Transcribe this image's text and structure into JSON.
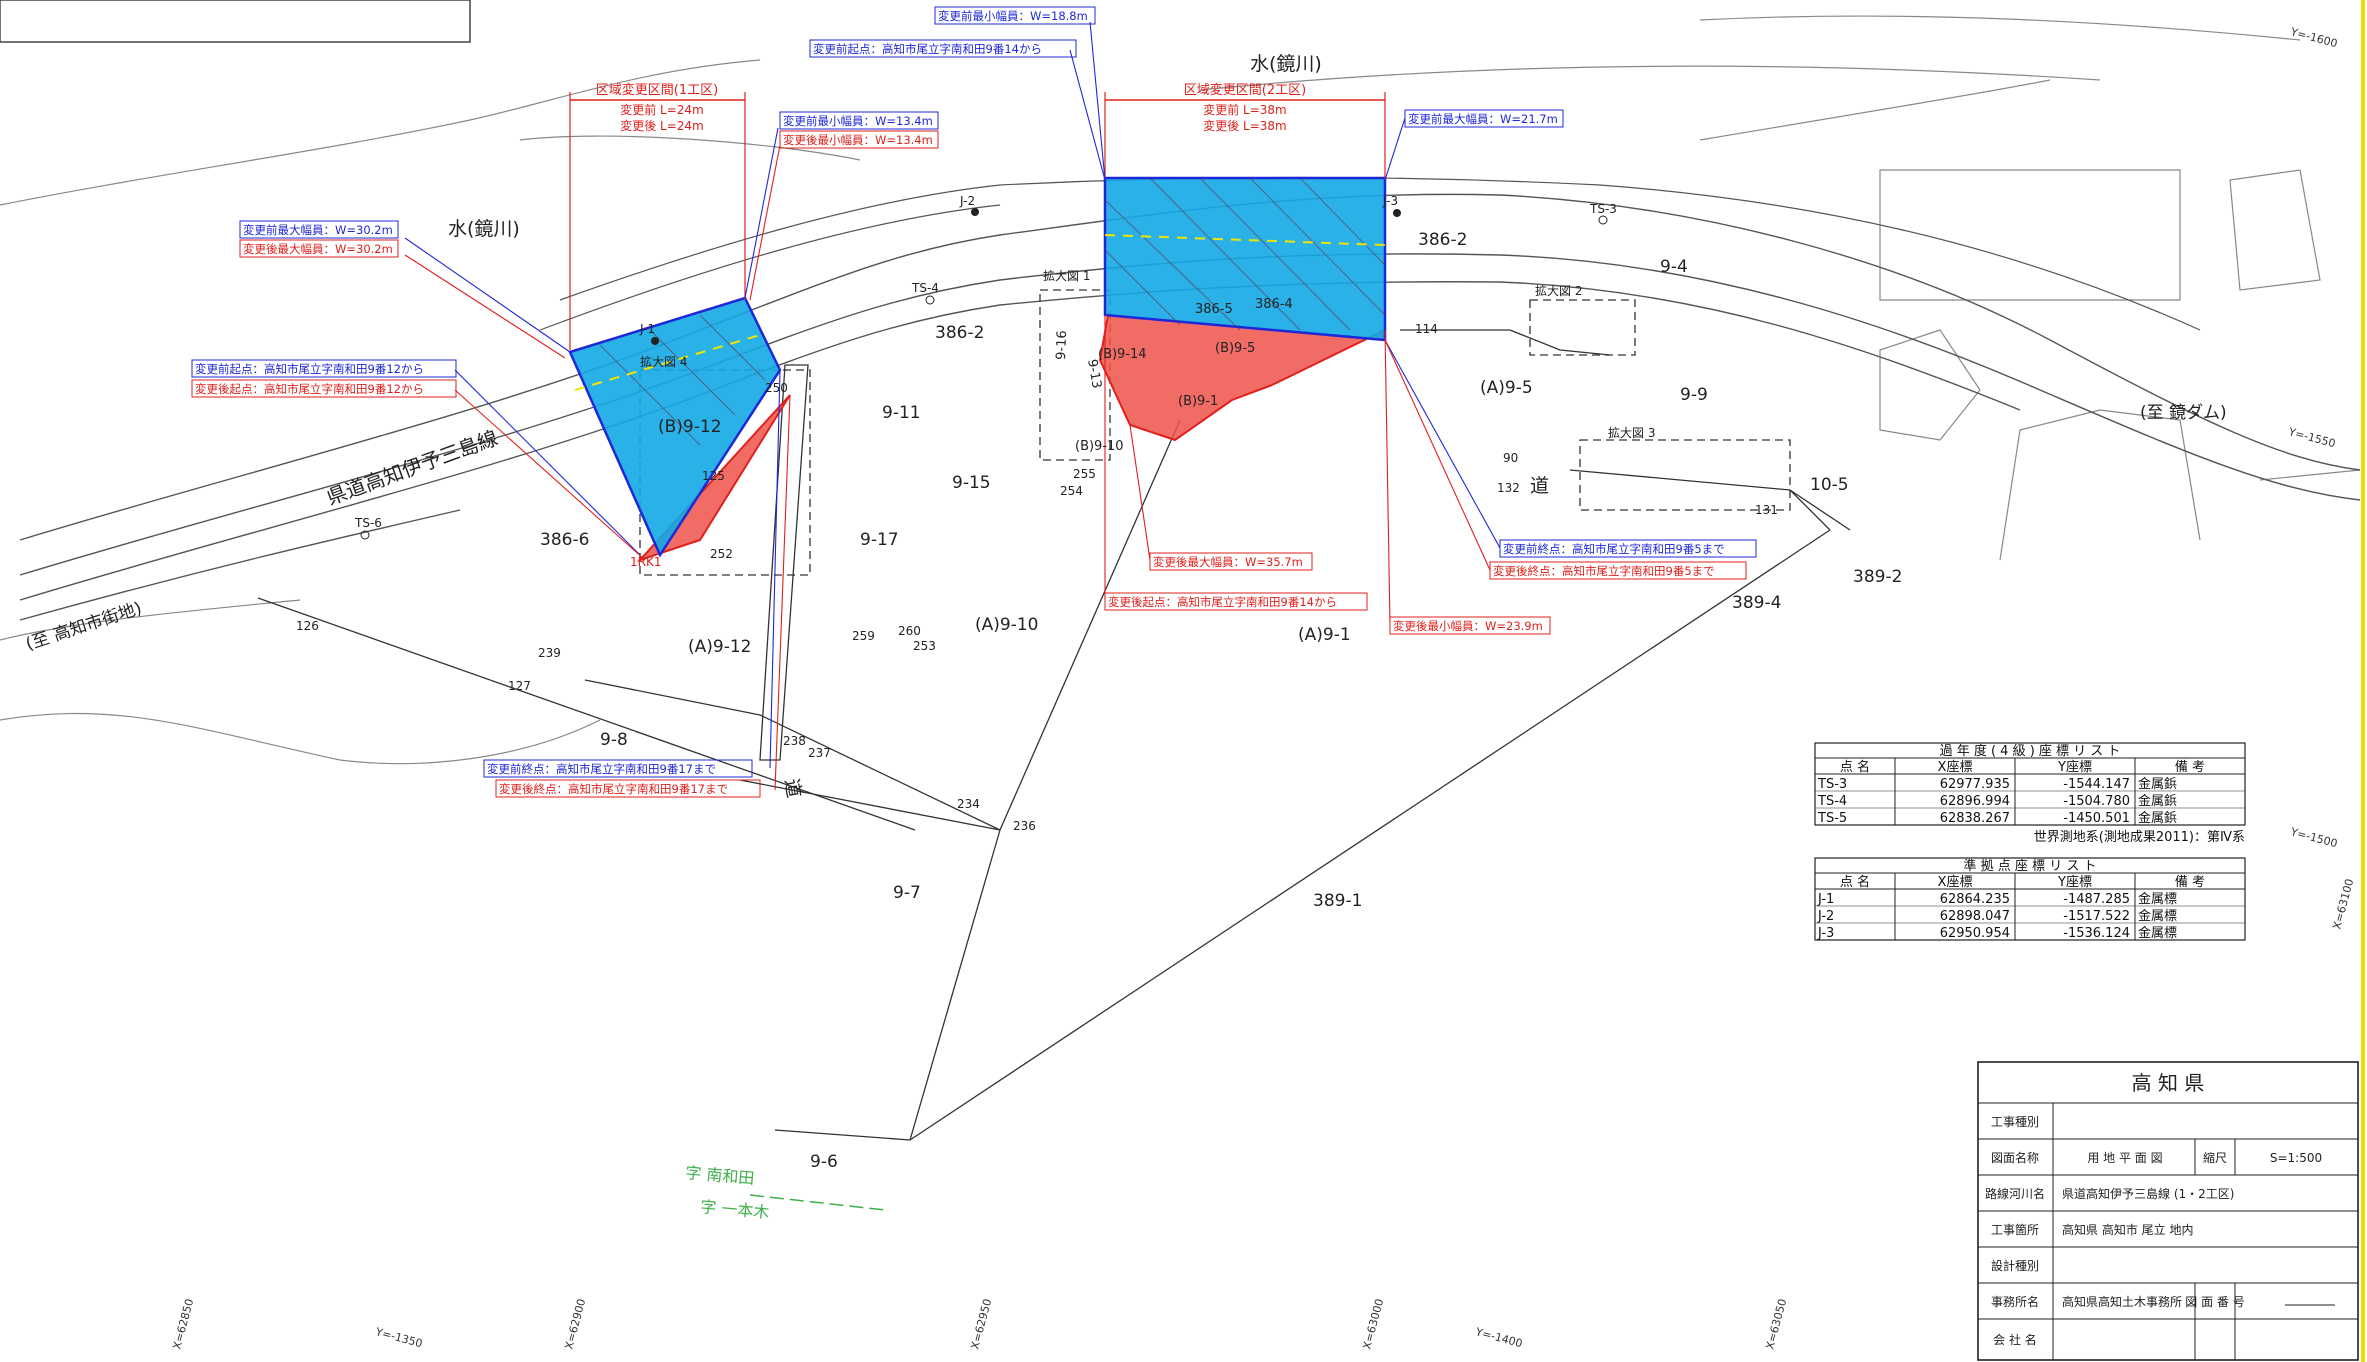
{
  "map": {
    "river_label_1": "水(鏡川)",
    "river_label_2": "水(鏡川)",
    "road_label": "県道高知伊予三島線",
    "direction_city": "(至 高知市街地)",
    "direction_dam": "(至 鏡ダム)",
    "road_char_1": "道",
    "road_char_2": "道",
    "aza_1": "字 南和田",
    "aza_2": "字 一本木"
  },
  "zones": [
    {
      "header": "区域変更区間(1工区)",
      "before_len": "変更前 L=24m",
      "after_len": "変更後 L=24m"
    },
    {
      "header": "区域変更区間(2工区)",
      "before_len": "変更前 L=38m",
      "after_len": "変更後 L=38m"
    }
  ],
  "callouts": {
    "z1_max_before": "変更前最大幅員：W=30.2m",
    "z1_max_after": "変更後最大幅員：W=30.2m",
    "z1_min_before": "変更前最小幅員：W=13.4m",
    "z1_min_after": "変更後最小幅員：W=13.4m",
    "z1_start_before": "変更前起点：高知市尾立字南和田9番12から",
    "z1_start_after": "変更後起点：高知市尾立字南和田9番12から",
    "z1_end_before": "変更前終点：高知市尾立字南和田9番17まで",
    "z1_end_after": "変更後終点：高知市尾立字南和田9番17まで",
    "z2_min_before": "変更前最小幅員：W=18.8m",
    "z2_start_before": "変更前起点：高知市尾立字南和田9番14から",
    "z2_max_before": "変更前最大幅員：W=21.7m",
    "z2_max_after": "変更後最大幅員：W=35.7m",
    "z2_start_after": "変更後起点：高知市尾立字南和田9番14から",
    "z2_min_after": "変更後最小幅員：W=23.9m",
    "z2_end_before": "変更前終点：高知市尾立字南和田9番5まで",
    "z2_end_after": "変更後終点：高知市尾立字南和田9番5まで"
  },
  "parcels": [
    "386-6",
    "(B)9-12",
    "(A)9-12",
    "9-8",
    "9-7",
    "9-6",
    "9-11",
    "9-15",
    "9-17",
    "(A)9-10",
    "386-2",
    "(B)9-14",
    "(B)9-5",
    "(B)9-1",
    "(B)9-10",
    "(A)9-1",
    "386-5",
    "386-4",
    "386-2",
    "9-4",
    "(A)9-5",
    "9-9",
    "10-5",
    "389-2",
    "389-4",
    "389-1",
    "9-16",
    "9-13"
  ],
  "points": [
    "TS-6",
    "TS-4",
    "TS-3",
    "J-1",
    "J-2",
    "J-3",
    "250",
    "125",
    "126",
    "127",
    "239",
    "252",
    "238",
    "237",
    "234",
    "236",
    "259",
    "260",
    "253",
    "254",
    "255",
    "114",
    "90",
    "132",
    "131",
    "1RK1",
    "拡大図 1",
    "拡大図 2",
    "拡大図 3",
    "拡大図 4"
  ],
  "grid_labels": {
    "y1600": "Y=-1600",
    "y1550": "Y=-1550",
    "y1500": "Y=-1500",
    "x63100": "X=63100",
    "x62850": "X=62850",
    "x62900": "X=62900",
    "x62950": "X=62950",
    "x63000": "X=63000",
    "x63050": "X=63050",
    "y1350": "Y=-1350",
    "y1400": "Y=-1400"
  },
  "colors": {
    "before_area": "#12a8e6",
    "after_area": "#f0524b",
    "before_text": "#1e28d8",
    "after_text": "#e0201c",
    "green_text": "#3db04a"
  },
  "table_past": {
    "title": "過 年 度 ( 4 級 ) 座 標 リ ス ト",
    "headers": [
      "点 名",
      "X座標",
      "Y座標",
      "備 考"
    ],
    "rows": [
      [
        "TS-3",
        "62977.935",
        "-1544.147",
        "金属鋲"
      ],
      [
        "TS-4",
        "62896.994",
        "-1504.780",
        "金属鋲"
      ],
      [
        "TS-5",
        "62838.267",
        "-1450.501",
        "金属鋲"
      ]
    ],
    "note": "世界測地系(測地成果2011)：第Ⅳ系"
  },
  "table_ref": {
    "title": "準 拠 点 座 標 リ ス ト",
    "headers": [
      "点 名",
      "X座標",
      "Y座標",
      "備 考"
    ],
    "rows": [
      [
        "J-1",
        "62864.235",
        "-1487.285",
        "金属標"
      ],
      [
        "J-2",
        "62898.047",
        "-1517.522",
        "金属標"
      ],
      [
        "J-3",
        "62950.954",
        "-1536.124",
        "金属標"
      ]
    ]
  },
  "title_block": {
    "org": "高 知 県",
    "rows": [
      {
        "label": "工事種別",
        "value": ""
      },
      {
        "label": "図面名称",
        "value": "用 地 平 面 図"
      },
      {
        "label": "路線河川名",
        "value": "県道高知伊予三島線 (1・2工区)"
      },
      {
        "label": "工事箇所",
        "value": "高知県 高知市 尾立 地内"
      },
      {
        "label": "設計種別",
        "value": ""
      },
      {
        "label": "事務所名",
        "value": "高知県高知土木事務所"
      },
      {
        "label": "会 社 名",
        "value": ""
      }
    ],
    "scale_label": "縮尺",
    "scale_value": "S=1:500",
    "drawing_no_label": "図 面\n番 号"
  }
}
